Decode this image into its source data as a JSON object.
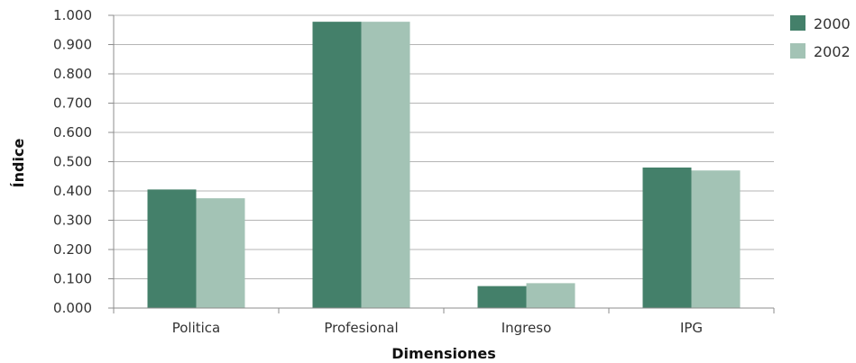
{
  "chart_data": {
    "type": "bar",
    "title": "",
    "xlabel": "Dimensiones",
    "ylabel": "Índice",
    "categories": [
      "Politica",
      "Profesional",
      "Ingreso",
      "IPG"
    ],
    "series": [
      {
        "name": "2000",
        "values": [
          0.405,
          0.978,
          0.075,
          0.48
        ],
        "color": "#44806a"
      },
      {
        "name": "2002",
        "values": [
          0.375,
          0.978,
          0.085,
          0.47
        ],
        "color": "#a3c3b5"
      }
    ],
    "ylim": [
      0,
      1.0
    ],
    "yticks": [
      "0.000",
      "0.100",
      "0.200",
      "0.300",
      "0.400",
      "0.500",
      "0.600",
      "0.700",
      "0.800",
      "0.900",
      "1.000"
    ],
    "grid": true,
    "legend_position": "top-right"
  }
}
